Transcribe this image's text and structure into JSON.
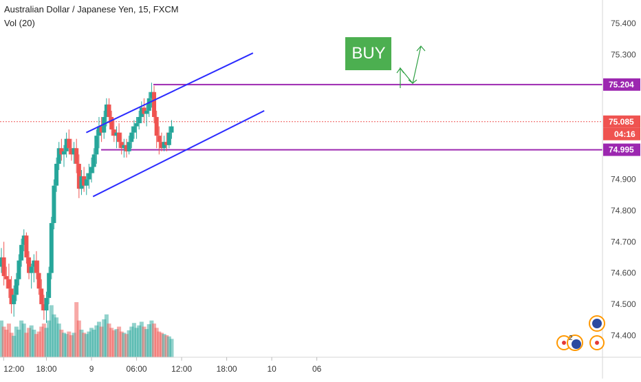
{
  "header": {
    "symbol_title": "Australian Dollar / Japanese Yen, 15, FXCM",
    "volume_label": "Vol (20)"
  },
  "chart_data": {
    "type": "candlestick",
    "title": "Australian Dollar / Japanese Yen, 15, FXCM",
    "symbol": "AUDJPY",
    "interval": "15",
    "source": "FXCM",
    "ylim": [
      74.33,
      75.475
    ],
    "y_ticks": [
      "75.400",
      "75.300",
      "74.900",
      "74.800",
      "74.700",
      "74.600",
      "74.500",
      "74.400"
    ],
    "x_ticks": [
      "12:00",
      "18:00",
      "9",
      "06:00",
      "12:00",
      "18:00",
      "10",
      "06"
    ],
    "x_tick_slots": [
      0.3,
      6,
      12,
      18,
      24,
      30,
      36,
      42
    ],
    "current_price": "75.085",
    "countdown": "04:16",
    "horizontal_levels": [
      {
        "label": "75.204",
        "value": 75.204,
        "color": "#9c27b0"
      },
      {
        "label": "74.995",
        "value": 74.995,
        "color": "#9c27b0"
      }
    ],
    "channel": {
      "upper": {
        "from": [
          11.3,
          75.05
        ],
        "to": [
          33.5,
          75.305
        ]
      },
      "lower": {
        "from": [
          12.2,
          74.845
        ],
        "to": [
          35.0,
          75.12
        ]
      }
    },
    "annotation": {
      "text": "BUY",
      "color": "#4caf50"
    },
    "grid": false,
    "up_color": "#26a69a",
    "down_color": "#ef5350",
    "candles": [
      [
        74.62,
        74.68,
        74.6,
        74.65
      ],
      [
        74.65,
        74.7,
        74.56,
        74.59
      ],
      [
        74.59,
        74.62,
        74.55,
        74.58
      ],
      [
        74.58,
        74.63,
        74.52,
        74.55
      ],
      [
        74.55,
        74.59,
        74.47,
        74.5
      ],
      [
        74.5,
        74.56,
        74.46,
        74.53
      ],
      [
        74.53,
        74.6,
        74.51,
        74.58
      ],
      [
        74.58,
        74.66,
        74.56,
        74.64
      ],
      [
        74.64,
        74.71,
        74.62,
        74.69
      ],
      [
        74.69,
        74.74,
        74.67,
        74.72
      ],
      [
        74.72,
        74.73,
        74.63,
        74.65
      ],
      [
        74.65,
        74.67,
        74.58,
        74.6
      ],
      [
        74.6,
        74.63,
        74.55,
        74.62
      ],
      [
        74.62,
        74.66,
        74.57,
        74.64
      ],
      [
        74.64,
        74.67,
        74.58,
        74.6
      ],
      [
        74.6,
        74.64,
        74.53,
        74.55
      ],
      [
        74.55,
        74.58,
        74.48,
        74.5
      ],
      [
        74.5,
        74.53,
        74.45,
        74.48
      ],
      [
        74.48,
        74.54,
        74.44,
        74.52
      ],
      [
        74.52,
        74.62,
        74.5,
        74.6
      ],
      [
        74.6,
        74.78,
        74.58,
        74.76
      ],
      [
        74.76,
        74.9,
        74.74,
        74.88
      ],
      [
        74.88,
        74.97,
        74.86,
        74.95
      ],
      [
        74.95,
        75.02,
        74.93,
        75.0
      ],
      [
        75.0,
        75.03,
        74.96,
        74.98
      ],
      [
        74.98,
        75.01,
        74.94,
        74.99
      ],
      [
        74.99,
        75.05,
        74.97,
        75.03
      ],
      [
        75.03,
        75.06,
        74.98,
        75.0
      ],
      [
        75.0,
        75.03,
        74.96,
        74.98
      ],
      [
        74.98,
        75.02,
        74.95,
        75.0
      ],
      [
        75.0,
        75.03,
        74.92,
        74.95
      ],
      [
        74.95,
        74.98,
        74.84,
        74.87
      ],
      [
        74.87,
        74.93,
        74.85,
        74.91
      ],
      [
        74.91,
        74.94,
        74.86,
        74.88
      ],
      [
        74.88,
        74.92,
        74.85,
        74.9
      ],
      [
        74.9,
        74.95,
        74.87,
        74.92
      ],
      [
        74.92,
        74.97,
        74.89,
        74.94
      ],
      [
        74.94,
        75.0,
        74.92,
        74.98
      ],
      [
        74.98,
        75.06,
        74.95,
        75.04
      ],
      [
        75.04,
        75.1,
        75.0,
        75.07
      ],
      [
        75.07,
        75.1,
        75.02,
        75.05
      ],
      [
        75.05,
        75.12,
        75.03,
        75.1
      ],
      [
        75.1,
        75.16,
        75.07,
        75.14
      ],
      [
        75.14,
        75.16,
        75.08,
        75.1
      ],
      [
        75.1,
        75.12,
        75.04,
        75.06
      ],
      [
        75.06,
        75.09,
        75.02,
        75.04
      ],
      [
        75.04,
        75.07,
        75.0,
        75.05
      ],
      [
        75.05,
        75.08,
        75.0,
        75.02
      ],
      [
        75.02,
        75.05,
        74.98,
        75.0
      ],
      [
        75.0,
        75.03,
        74.97,
        75.01
      ],
      [
        75.01,
        75.03,
        74.97,
        74.99
      ],
      [
        74.99,
        75.04,
        74.98,
        75.02
      ],
      [
        75.02,
        75.07,
        75.0,
        75.05
      ],
      [
        75.05,
        75.09,
        75.03,
        75.07
      ],
      [
        75.07,
        75.1,
        75.03,
        75.08
      ],
      [
        75.08,
        75.12,
        75.06,
        75.1
      ],
      [
        75.1,
        75.15,
        75.08,
        75.13
      ],
      [
        75.13,
        75.16,
        75.08,
        75.11
      ],
      [
        75.11,
        75.14,
        75.07,
        75.12
      ],
      [
        75.12,
        75.18,
        75.1,
        75.16
      ],
      [
        75.16,
        75.21,
        75.13,
        75.18
      ],
      [
        75.18,
        75.2,
        75.08,
        75.1
      ],
      [
        75.1,
        75.12,
        75.0,
        75.04
      ],
      [
        75.04,
        75.07,
        74.98,
        75.02
      ],
      [
        75.02,
        75.05,
        74.99,
        75.0
      ],
      [
        75.0,
        75.04,
        74.99,
        75.02
      ],
      [
        75.02,
        75.05,
        74.99,
        75.01
      ],
      [
        75.01,
        75.07,
        75.0,
        75.05
      ],
      [
        75.05,
        75.09,
        75.03,
        75.07
      ]
    ],
    "volumes": [
      60,
      50,
      45,
      55,
      40,
      35,
      50,
      45,
      60,
      55,
      40,
      48,
      52,
      45,
      38,
      42,
      50,
      55,
      48,
      60,
      85,
      70,
      65,
      55,
      45,
      40,
      38,
      42,
      36,
      40,
      90,
      60,
      45,
      40,
      38,
      42,
      48,
      45,
      52,
      58,
      50,
      62,
      70,
      55,
      48,
      44,
      46,
      50,
      42,
      40,
      38,
      44,
      50,
      56,
      48,
      52,
      58,
      50,
      46,
      54,
      60,
      55,
      48,
      42,
      40,
      38,
      36,
      34,
      30
    ]
  }
}
